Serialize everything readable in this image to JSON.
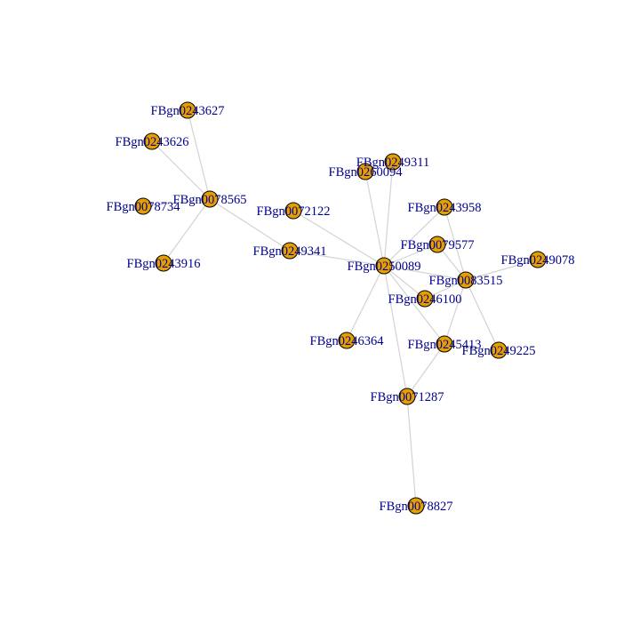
{
  "colors": {
    "node_fill": "#e69f00",
    "node_stroke": "#000000",
    "edge": "#d3d3d3",
    "label": "#00008b",
    "background": "#ffffff"
  },
  "nodes": [
    {
      "id": "FBgn0243627"
    },
    {
      "id": "FBgn0243626"
    },
    {
      "id": "FBgn0078565"
    },
    {
      "id": "FBgn0078734"
    },
    {
      "id": "FBgn0243916"
    },
    {
      "id": "FBgn0072122"
    },
    {
      "id": "FBgn0249341"
    },
    {
      "id": "FBgn0249311"
    },
    {
      "id": "FBgn0260094"
    },
    {
      "id": "FBgn0243958"
    },
    {
      "id": "FBgn0079577"
    },
    {
      "id": "FBgn0249078"
    },
    {
      "id": "FBgn0250089"
    },
    {
      "id": "FBgn0083515"
    },
    {
      "id": "FBgn0246100"
    },
    {
      "id": "FBgn0246364"
    },
    {
      "id": "FBgn0245413"
    },
    {
      "id": "FBgn0249225"
    },
    {
      "id": "FBgn0071287"
    },
    {
      "id": "FBgn0078827"
    }
  ],
  "edges": [
    [
      "FBgn0078565",
      "FBgn0243627"
    ],
    [
      "FBgn0078565",
      "FBgn0243626"
    ],
    [
      "FBgn0078565",
      "FBgn0078734"
    ],
    [
      "FBgn0078565",
      "FBgn0243916"
    ],
    [
      "FBgn0078565",
      "FBgn0249341"
    ],
    [
      "FBgn0249341",
      "FBgn0250089"
    ],
    [
      "FBgn0072122",
      "FBgn0250089"
    ],
    [
      "FBgn0249311",
      "FBgn0250089"
    ],
    [
      "FBgn0260094",
      "FBgn0250089"
    ],
    [
      "FBgn0243958",
      "FBgn0250089"
    ],
    [
      "FBgn0079577",
      "FBgn0250089"
    ],
    [
      "FBgn0083515",
      "FBgn0250089"
    ],
    [
      "FBgn0246100",
      "FBgn0250089"
    ],
    [
      "FBgn0246364",
      "FBgn0250089"
    ],
    [
      "FBgn0245413",
      "FBgn0250089"
    ],
    [
      "FBgn0071287",
      "FBgn0250089"
    ],
    [
      "FBgn0243958",
      "FBgn0083515"
    ],
    [
      "FBgn0079577",
      "FBgn0083515"
    ],
    [
      "FBgn0249078",
      "FBgn0083515"
    ],
    [
      "FBgn0249225",
      "FBgn0083515"
    ],
    [
      "FBgn0245413",
      "FBgn0083515"
    ],
    [
      "FBgn0246100",
      "FBgn0083515"
    ],
    [
      "FBgn0245413",
      "FBgn0071287"
    ],
    [
      "FBgn0071287",
      "FBgn0078827"
    ]
  ]
}
